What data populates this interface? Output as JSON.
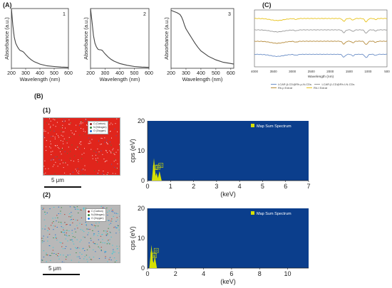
{
  "panels": {
    "A": "(A)",
    "B": "(B)",
    "C": "(C)",
    "B1": "(1)",
    "B2": "(2)"
  },
  "colors": {
    "eds_bg": "#0b3e8c",
    "eds_peak": "#d6e000",
    "map_red": "#e0251c",
    "map_gray": "#b8b8b8",
    "carbon": "#8b1a1a",
    "nitrogen": "#2e8b3a",
    "oxygen": "#1e6fd9",
    "ftir_yellow": "#e8c21a",
    "ftir_gray": "#9a9a9a",
    "ftir_brown": "#b58a3a",
    "ftir_blue": "#6c8fc7"
  },
  "chart_data": [
    {
      "type": "line",
      "panel_number": "1",
      "xlabel": "Wavelength (nm)",
      "ylabel": "Absorbance (a.u.)",
      "xlim": [
        200,
        600
      ],
      "x_ticks": [
        "200",
        "300",
        "400",
        "500",
        "600"
      ],
      "x": [
        200,
        210,
        220,
        230,
        240,
        250,
        260,
        270,
        280,
        290,
        300,
        320,
        340,
        360,
        380,
        400,
        450,
        500,
        550,
        600
      ],
      "y": [
        1.0,
        0.72,
        0.52,
        0.42,
        0.37,
        0.33,
        0.3,
        0.29,
        0.28,
        0.26,
        0.23,
        0.18,
        0.14,
        0.11,
        0.09,
        0.07,
        0.04,
        0.03,
        0.02,
        0.015
      ]
    },
    {
      "type": "line",
      "panel_number": "2",
      "xlabel": "Wavelength (nm)",
      "ylabel": "Absorbance (a.u.)",
      "xlim": [
        200,
        600
      ],
      "x_ticks": [
        "200",
        "300",
        "400",
        "500",
        "600"
      ],
      "x": [
        200,
        210,
        220,
        230,
        240,
        250,
        260,
        270,
        280,
        290,
        300,
        320,
        340,
        360,
        380,
        400,
        450,
        500,
        550,
        600
      ],
      "y": [
        1.0,
        0.78,
        0.55,
        0.42,
        0.36,
        0.32,
        0.31,
        0.31,
        0.3,
        0.27,
        0.24,
        0.19,
        0.15,
        0.12,
        0.1,
        0.08,
        0.05,
        0.03,
        0.02,
        0.015
      ]
    },
    {
      "type": "line",
      "panel_number": "3",
      "xlabel": "Wavelength (nm)",
      "ylabel": "Absorbance (a.u.)",
      "xlim": [
        200,
        620
      ],
      "x_ticks": [
        "200",
        "300",
        "400",
        "500",
        "600"
      ],
      "x": [
        200,
        220,
        240,
        260,
        270,
        280,
        290,
        300,
        310,
        320,
        340,
        360,
        380,
        400,
        450,
        500,
        550,
        600,
        620
      ],
      "y": [
        0.97,
        0.95,
        0.93,
        0.9,
        0.86,
        0.8,
        0.72,
        0.66,
        0.62,
        0.58,
        0.5,
        0.42,
        0.35,
        0.29,
        0.2,
        0.14,
        0.1,
        0.08,
        0.07
      ]
    },
    {
      "type": "line",
      "panel": "C",
      "xlabel": "Wavelength (nm)",
      "xlim": [
        4000,
        500
      ],
      "x_ticks": [
        "4000",
        "3500",
        "3000",
        "2500",
        "2000",
        "1500",
        "1000",
        "500"
      ],
      "series": [
        {
          "name": "Rh.I Extrat",
          "color": "#e8c21a",
          "offset": 0.85
        },
        {
          "name": "LCAR.β-CD@Rh.I-N-CDs",
          "color": "#9a9a9a",
          "offset": 0.65
        },
        {
          "name": "Rh.p Extrat",
          "color": "#b58a3a",
          "offset": 0.45
        },
        {
          "name": "LCAR.β-CD@Rh.p-N-CDs",
          "color": "#6c8fc7",
          "offset": 0.22
        }
      ],
      "legend": [
        "LCAR.β-CD@Rh.p-N-CDs",
        "LCAR.β-CD@Rh.I-N-CDs",
        "Rh.p Extrat",
        "Rh.I Extrat"
      ]
    },
    {
      "type": "bar",
      "panel": "B1",
      "title": "Map Sum Spectrum",
      "xlabel": "(keV)",
      "ylabel": "cps (eV)",
      "xlim": [
        0,
        7
      ],
      "ylim": [
        0,
        20
      ],
      "x_ticks": [
        "0",
        "1",
        "2",
        "3",
        "4",
        "5",
        "6",
        "7"
      ],
      "y_ticks": [
        "0",
        "10",
        "20"
      ],
      "peaks": [
        {
          "element": "C",
          "kev": 0.28,
          "cps": 7.5
        },
        {
          "element": "N",
          "kev": 0.39,
          "cps": 2.6
        },
        {
          "element": "O",
          "kev": 0.52,
          "cps": 3.2
        }
      ],
      "peak_labels": [
        "C",
        "N",
        "O"
      ]
    },
    {
      "type": "bar",
      "panel": "B2",
      "title": "Map Sum Spectrum",
      "xlabel": "(keV)",
      "ylabel": "cps (eV)",
      "xlim": [
        0,
        11.5
      ],
      "ylim": [
        0,
        20
      ],
      "x_ticks": [
        "0",
        "2",
        "4",
        "6",
        "8",
        "10"
      ],
      "y_ticks": [
        "0",
        "10",
        "20"
      ],
      "peaks": [
        {
          "element": "C",
          "kev": 0.28,
          "cps": 7.8
        },
        {
          "element": "N",
          "kev": 0.39,
          "cps": 2.3
        },
        {
          "element": "O",
          "kev": 0.52,
          "cps": 4.0
        }
      ],
      "peak_labels": [
        "C",
        "N",
        "O"
      ]
    }
  ],
  "maps": [
    {
      "scale": "5 μm",
      "legend": [
        "C (Carbon)",
        "N (Nitrogen)",
        "O (Oxygen)"
      ]
    },
    {
      "scale": "5 μm",
      "legend": [
        "C (Carbon)",
        "N (Nitrogen)",
        "O (Oxygen)"
      ]
    }
  ]
}
